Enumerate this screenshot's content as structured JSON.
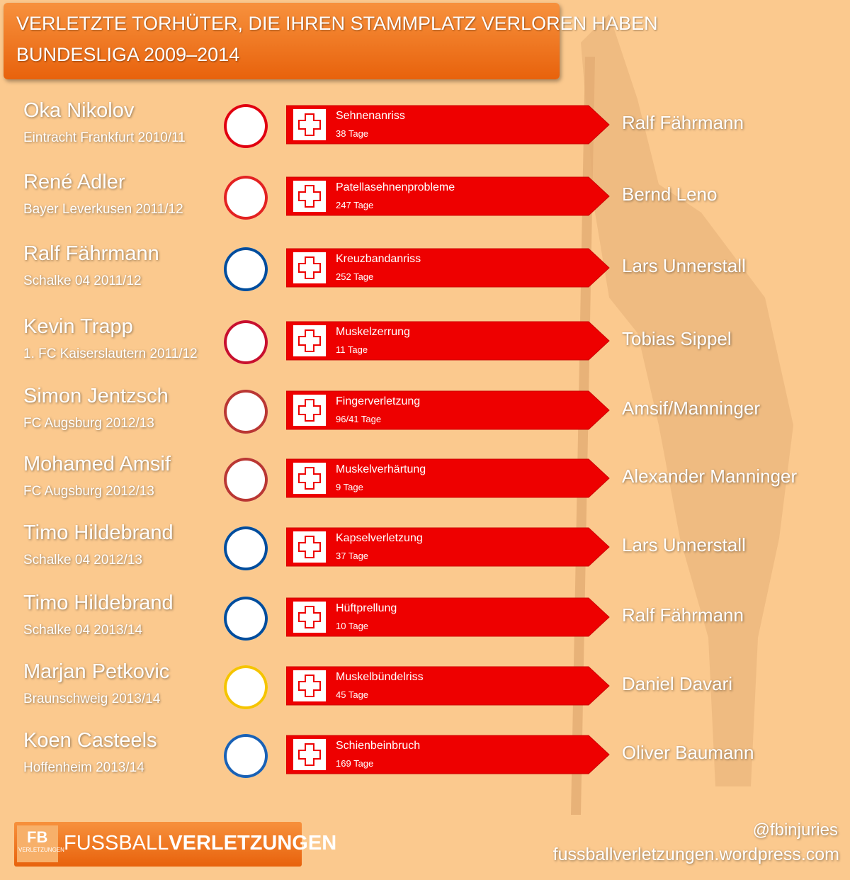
{
  "header": {
    "title": "VERLETZTE TORHÜTER, DIE IHREN STAMMPLATZ VERLOREN HABEN",
    "subtitle": "BUNDESLIGA 2009–2014"
  },
  "rows": [
    {
      "player": "Oka Nikolov",
      "club": "Eintracht Frankfurt 2010/11",
      "injury": "Sehnenanriss",
      "duration": "38 Tage",
      "replacement": "Ralf Fährmann"
    },
    {
      "player": "René Adler",
      "club": "Bayer Leverkusen 2011/12",
      "injury": "Patellasehnenprobleme",
      "duration": "247 Tage",
      "replacement": "Bernd Leno"
    },
    {
      "player": "Ralf Fährmann",
      "club": "Schalke 04 2011/12",
      "injury": "Kreuzbandanriss",
      "duration": "252 Tage",
      "replacement": "Lars Unnerstall"
    },
    {
      "player": "Kevin Trapp",
      "club": "1. FC Kaiserslautern 2011/12",
      "injury": "Muskelzerrung",
      "duration": "11 Tage",
      "replacement": "Tobias Sippel"
    },
    {
      "player": "Simon Jentzsch",
      "club": "FC Augsburg 2012/13",
      "injury": "Fingerverletzung",
      "duration": "96/41 Tage",
      "replacement": "Amsif/Manninger"
    },
    {
      "player": "Mohamed Amsif",
      "club": "FC Augsburg 2012/13",
      "injury": "Muskelverhärtung",
      "duration": "9 Tage",
      "replacement": "Alexander Manninger"
    },
    {
      "player": "Timo Hildebrand",
      "club": "Schalke 04 2012/13",
      "injury": "Kapselverletzung",
      "duration": "37 Tage",
      "replacement": "Lars Unnerstall"
    },
    {
      "player": "Timo Hildebrand",
      "club": "Schalke 04 2013/14",
      "injury": "Hüftprellung",
      "duration": "10 Tage",
      "replacement": "Ralf Fährmann"
    },
    {
      "player": "Marjan Petkovic",
      "club": "Braunschweig 2013/14",
      "injury": "Muskelbündelriss",
      "duration": "45 Tage",
      "replacement": "Daniel Davari"
    },
    {
      "player": "Koen Casteels",
      "club": "Hoffenheim 2013/14",
      "injury": "Schienbeinbruch",
      "duration": "169 Tage",
      "replacement": "Oliver Baumann"
    }
  ],
  "footer": {
    "logo_badge": "FB",
    "logo_badge_sub": "VERLETZUNGEN",
    "logo_text_a": "FUSSBALL",
    "logo_text_b": "VERLETZUNGEN",
    "twitter": "@fbinjuries",
    "website": "fussballverletzungen.wordpress.com"
  }
}
